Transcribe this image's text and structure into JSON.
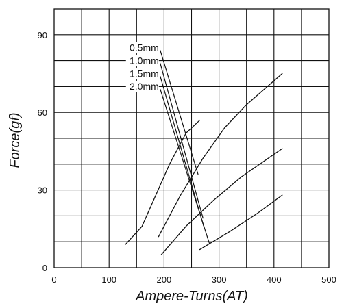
{
  "chart_data": {
    "type": "line",
    "title": "",
    "xlabel": "Ampere-Turns(AT)",
    "ylabel": "Force(gf)",
    "xlim": [
      0,
      500
    ],
    "ylim": [
      0,
      100
    ],
    "x_ticks": [
      0,
      100,
      200,
      300,
      400,
      500
    ],
    "y_ticks": [
      0,
      30,
      60,
      90
    ],
    "grid": true,
    "series": [
      {
        "name": "0.5mm",
        "points": [
          [
            130,
            9
          ],
          [
            160,
            16
          ],
          [
            185,
            28
          ],
          [
            210,
            40
          ],
          [
            240,
            52
          ],
          [
            265,
            57
          ]
        ]
      },
      {
        "name": "1.0mm",
        "points": [
          [
            190,
            12
          ],
          [
            230,
            28
          ],
          [
            270,
            42
          ],
          [
            310,
            54
          ],
          [
            350,
            63
          ],
          [
            415,
            75
          ]
        ]
      },
      {
        "name": "1.5mm",
        "points": [
          [
            195,
            5
          ],
          [
            240,
            16
          ],
          [
            290,
            26
          ],
          [
            340,
            35
          ],
          [
            415,
            46
          ]
        ]
      },
      {
        "name": "2.0mm",
        "points": [
          [
            265,
            7
          ],
          [
            320,
            14
          ],
          [
            370,
            21
          ],
          [
            415,
            28
          ]
        ]
      }
    ],
    "label_leaders": [
      {
        "label": "0.5mm",
        "from": [
          193,
          84
        ],
        "to": [
          262,
          36
        ]
      },
      {
        "label": "1.0mm",
        "from": [
          193,
          79
        ],
        "to": [
          271,
          19
        ]
      },
      {
        "label": "1.5mm",
        "from": [
          193,
          74
        ],
        "to": [
          272,
          16
        ]
      },
      {
        "label": "2.0mm",
        "from": [
          193,
          69
        ],
        "to": [
          283,
          9
        ]
      }
    ]
  }
}
